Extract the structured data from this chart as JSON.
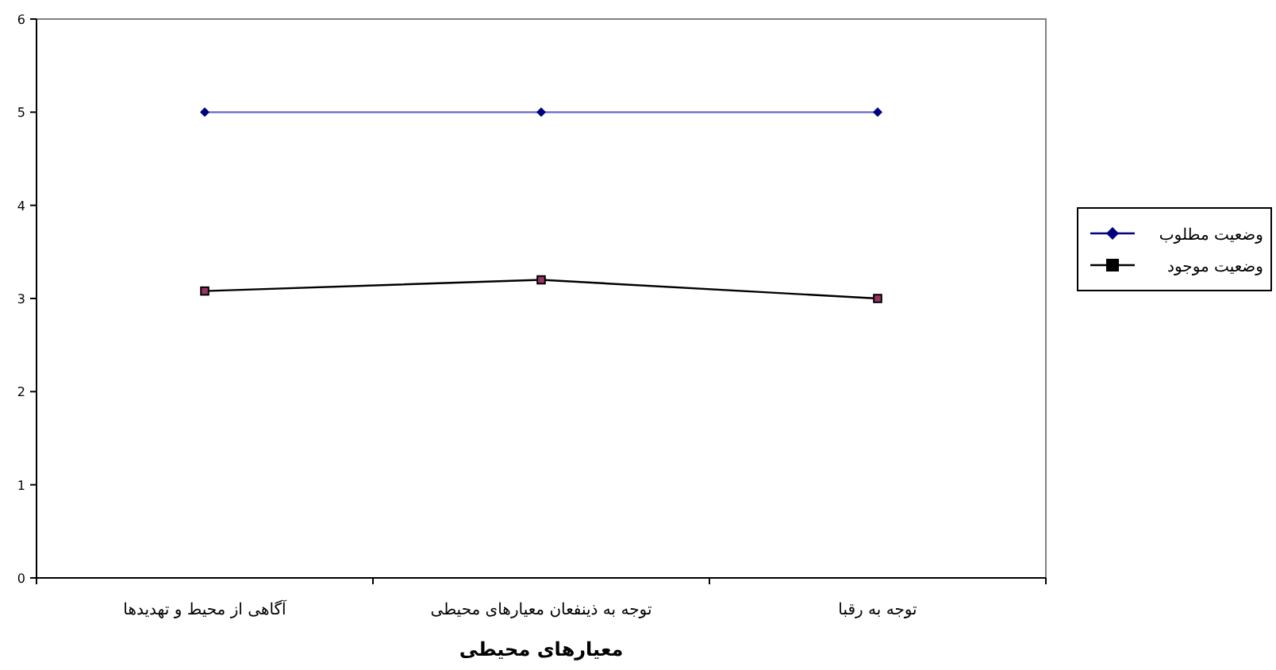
{
  "chart_data": {
    "type": "line",
    "xlabel": "معیارهای محیطی",
    "categories": [
      "آگاهی از محیط و تهدیدها",
      "توجه به ذینفعان معیارهای محیطی",
      "توجه به رقبا"
    ],
    "series": [
      {
        "name": "وضعیت مطلوب",
        "color": "#000080",
        "marker": "diamond",
        "values": [
          5,
          5,
          5
        ]
      },
      {
        "name": "وضعیت موجود",
        "color": "#000000",
        "marker": "square",
        "values": [
          3.08,
          3.2,
          3.0
        ]
      }
    ],
    "ylim": [
      0,
      6
    ],
    "yticks": [
      0,
      1,
      2,
      3,
      4,
      5,
      6
    ],
    "grid": false,
    "legend": "right"
  }
}
